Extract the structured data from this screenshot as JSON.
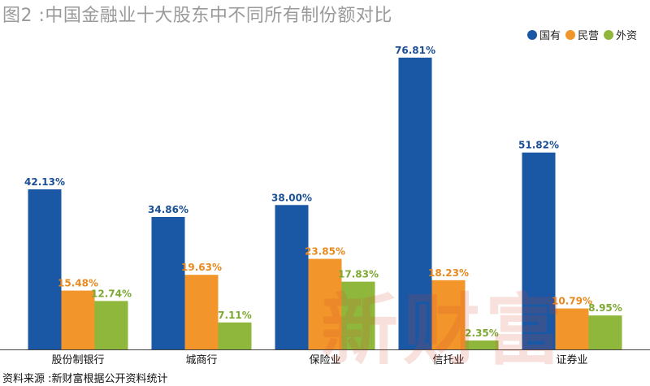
{
  "title": "图2 :中国金融业十大股东中不同所有制份额对比",
  "source": "资料来源 :新财富根据公开资料统计",
  "watermark": "新财富",
  "chart_data": {
    "type": "bar",
    "categories": [
      "股份制银行",
      "城商行",
      "保险业",
      "信托业",
      "证券业"
    ],
    "series": [
      {
        "name": "国有",
        "color": "#1a57a5",
        "label_color": "#1a4f96",
        "values": [
          42.13,
          34.86,
          38.0,
          76.81,
          51.82
        ]
      },
      {
        "name": "民营",
        "color": "#f2952a",
        "label_color": "#e8891e",
        "values": [
          15.48,
          19.63,
          23.85,
          18.23,
          10.79
        ]
      },
      {
        "name": "外资",
        "color": "#8fb73c",
        "label_color": "#7da832",
        "values": [
          12.74,
          7.11,
          17.83,
          2.35,
          8.95
        ]
      }
    ],
    "ylim": [
      0,
      80
    ],
    "grid": false,
    "legend_position": "top-right",
    "value_suffix": "%"
  }
}
